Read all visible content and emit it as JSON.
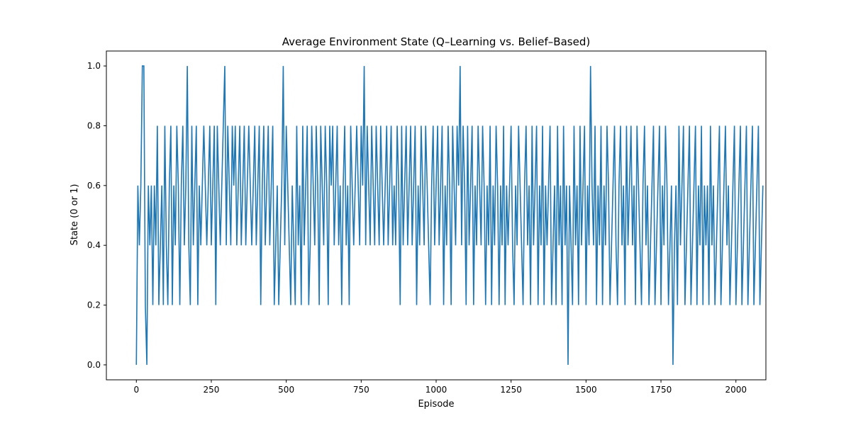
{
  "chart_data": {
    "type": "line",
    "title": "Average Environment State (Q–Learning vs. Belief–Based)",
    "xlabel": "Episode",
    "ylabel": "State (0 or 1)",
    "xlim": [
      -100,
      2100
    ],
    "ylim": [
      -0.05,
      1.05
    ],
    "x_ticks": [
      0,
      250,
      500,
      750,
      1000,
      1250,
      1500,
      1750,
      2000
    ],
    "y_ticks": [
      0.0,
      0.2,
      0.4,
      0.6,
      0.8,
      1.0
    ],
    "x_tick_labels": [
      "0",
      "250",
      "500",
      "750",
      "1000",
      "1250",
      "1500",
      "1750",
      "2000"
    ],
    "y_tick_labels": [
      "0.0",
      "0.2",
      "0.4",
      "0.6",
      "0.8",
      "1.0"
    ],
    "grid": false,
    "legend": "none",
    "series_color": "#1f77b4",
    "series": [
      {
        "x_start": 0,
        "x_step": 5,
        "values": [
          0.0,
          0.6,
          0.4,
          0.6,
          1.0,
          1.0,
          0.2,
          0.0,
          0.6,
          0.4,
          0.6,
          0.2,
          0.6,
          0.4,
          0.8,
          0.2,
          0.4,
          0.6,
          0.2,
          0.8,
          0.4,
          0.2,
          0.6,
          0.8,
          0.2,
          0.6,
          0.4,
          0.8,
          0.6,
          0.2,
          0.6,
          0.8,
          0.4,
          0.6,
          1.0,
          0.4,
          0.2,
          0.8,
          0.4,
          0.6,
          0.8,
          0.2,
          0.6,
          0.4,
          0.6,
          0.8,
          0.6,
          0.4,
          0.6,
          0.8,
          0.4,
          0.6,
          0.8,
          0.2,
          0.8,
          0.6,
          0.4,
          0.6,
          0.8,
          1.0,
          0.4,
          0.8,
          0.6,
          0.4,
          0.8,
          0.6,
          0.8,
          0.4,
          0.6,
          0.8,
          0.4,
          0.6,
          0.8,
          0.4,
          0.6,
          0.8,
          0.6,
          0.4,
          0.6,
          0.8,
          0.4,
          0.6,
          0.8,
          0.2,
          0.6,
          0.8,
          0.4,
          0.6,
          0.8,
          0.4,
          0.6,
          0.8,
          0.2,
          0.4,
          0.6,
          0.2,
          0.4,
          0.6,
          1.0,
          0.4,
          0.8,
          0.6,
          0.4,
          0.2,
          0.6,
          0.4,
          0.2,
          0.8,
          0.4,
          0.6,
          0.2,
          0.8,
          0.4,
          0.6,
          0.8,
          0.2,
          0.4,
          0.8,
          0.6,
          0.4,
          0.8,
          0.6,
          0.2,
          0.8,
          0.6,
          0.4,
          0.8,
          0.6,
          0.2,
          0.8,
          0.6,
          0.8,
          0.4,
          0.6,
          0.8,
          0.4,
          0.6,
          0.2,
          0.6,
          0.8,
          0.4,
          0.6,
          0.2,
          0.8,
          0.6,
          0.4,
          0.6,
          0.8,
          0.6,
          0.4,
          0.8,
          0.6,
          1.0,
          0.4,
          0.8,
          0.6,
          0.4,
          0.8,
          0.6,
          0.4,
          0.8,
          0.6,
          0.4,
          0.8,
          0.6,
          0.4,
          0.6,
          0.8,
          0.4,
          0.6,
          0.8,
          0.4,
          0.6,
          0.4,
          0.8,
          0.6,
          0.2,
          0.8,
          0.4,
          0.6,
          0.8,
          0.4,
          0.6,
          0.8,
          0.4,
          0.6,
          0.8,
          0.2,
          0.6,
          0.4,
          0.8,
          0.6,
          0.4,
          0.8,
          0.6,
          0.4,
          0.2,
          0.6,
          0.8,
          0.4,
          0.6,
          0.8,
          0.4,
          0.6,
          0.8,
          0.2,
          0.6,
          0.4,
          0.8,
          0.6,
          0.2,
          0.8,
          0.6,
          0.4,
          0.8,
          0.6,
          1.0,
          0.4,
          0.8,
          0.6,
          0.2,
          0.8,
          0.4,
          0.6,
          0.8,
          0.2,
          0.6,
          0.4,
          0.8,
          0.6,
          0.4,
          0.8,
          0.6,
          0.2,
          0.6,
          0.4,
          0.8,
          0.2,
          0.6,
          0.4,
          0.8,
          0.6,
          0.2,
          0.6,
          0.4,
          0.8,
          0.2,
          0.6,
          0.4,
          0.6,
          0.8,
          0.4,
          0.2,
          0.6,
          0.4,
          0.8,
          0.6,
          0.4,
          0.2,
          0.6,
          0.8,
          0.4,
          0.6,
          0.2,
          0.8,
          0.4,
          0.6,
          0.8,
          0.2,
          0.6,
          0.4,
          0.8,
          0.2,
          0.6,
          0.4,
          0.6,
          0.8,
          0.2,
          0.4,
          0.6,
          0.2,
          0.8,
          0.4,
          0.6,
          0.2,
          0.8,
          0.4,
          0.6,
          0.0,
          0.6,
          0.4,
          0.2,
          0.8,
          0.4,
          0.6,
          0.2,
          0.8,
          0.4,
          0.6,
          0.8,
          0.2,
          0.6,
          0.4,
          1.0,
          0.6,
          0.4,
          0.8,
          0.2,
          0.6,
          0.4,
          0.8,
          0.2,
          0.6,
          0.4,
          0.8,
          0.6,
          0.2,
          0.4,
          0.6,
          0.8,
          0.4,
          0.2,
          0.6,
          0.8,
          0.4,
          0.6,
          0.2,
          0.8,
          0.4,
          0.6,
          0.8,
          0.4,
          0.6,
          0.2,
          0.8,
          0.6,
          0.4,
          0.2,
          0.6,
          0.8,
          0.4,
          0.6,
          0.2,
          0.4,
          0.6,
          0.8,
          0.2,
          0.4,
          0.6,
          0.8,
          0.2,
          0.6,
          0.4,
          0.8,
          0.6,
          0.2,
          0.4,
          0.6,
          0.0,
          0.4,
          0.6,
          0.2,
          0.8,
          0.4,
          0.6,
          0.8,
          0.2,
          0.4,
          0.6,
          0.8,
          0.2,
          0.4,
          0.6,
          0.8,
          0.2,
          0.6,
          0.4,
          0.8,
          0.2,
          0.6,
          0.4,
          0.6,
          0.2,
          0.8,
          0.4,
          0.6,
          0.2,
          0.4,
          0.6,
          0.8,
          0.2,
          0.4,
          0.6,
          0.8,
          0.4,
          0.6,
          0.2,
          0.4,
          0.6,
          0.8,
          0.2,
          0.4,
          0.6,
          0.8,
          0.2,
          0.4,
          0.6,
          0.8,
          0.2,
          0.4,
          0.6,
          0.8,
          0.2,
          0.4,
          0.6,
          0.8,
          0.2,
          0.4,
          0.6
        ]
      }
    ]
  }
}
